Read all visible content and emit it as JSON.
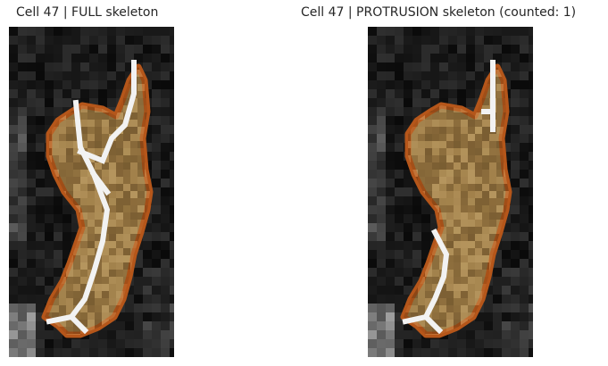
{
  "panels": [
    {
      "title": "Cell 47 | FULL skeleton",
      "skeleton": "full"
    },
    {
      "title": "Cell 47 | PROTRUSION skeleton (counted: 1)",
      "skeleton": "protrusion"
    }
  ],
  "colors": {
    "background": "#0c0c0c",
    "cell_fill": "#9b7a45",
    "cell_outline": "#b5561a",
    "skeleton": "#f2f2f2"
  }
}
